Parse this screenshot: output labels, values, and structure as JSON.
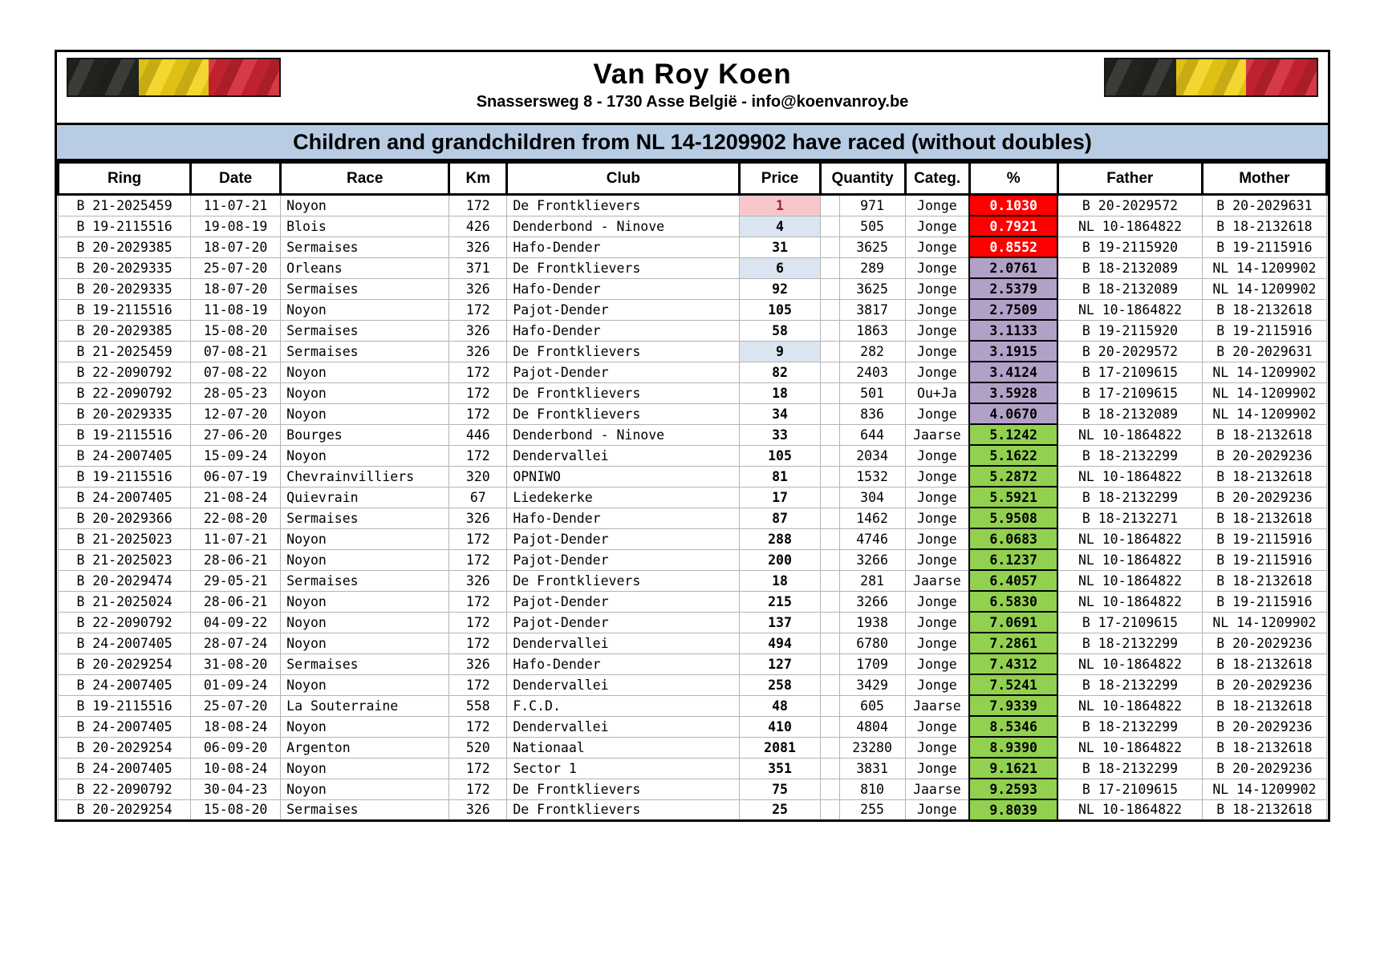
{
  "header": {
    "title": "Van Roy Koen",
    "address": "Snassersweg 8 - 1730 Asse België - info@koenvanroy.be"
  },
  "banner": {
    "text": "Children and grandchildren from NL 14-1209902 have raced (without doubles)"
  },
  "colors": {
    "banner_bg": "#b8cce4",
    "pct_red_bg": "#ff0000",
    "pct_red_text": "#ffffff",
    "pct_purple_bg": "#b2a1c7",
    "pct_purple_text": "#000000",
    "pct_green_bg": "#92d050",
    "pct_green_text": "#000000",
    "price_pink_bg": "#f7c7cd",
    "price_pink_text": "#a32430",
    "price_blue_bg": "#dbe5f1",
    "price_blue_text": "#000000",
    "flag_black": "#23271e",
    "flag_yellow": "#f2d118",
    "flag_red": "#d02433"
  },
  "table": {
    "columns": [
      "Ring",
      "Date",
      "Race",
      "Km",
      "Club",
      "Price",
      "Quantity",
      "Categ.",
      "%",
      "Father",
      "Mother"
    ],
    "rows": [
      {
        "ring": "B 21-2025459",
        "date": "11-07-21",
        "race": "Noyon",
        "km": "172",
        "club": "De Frontklievers",
        "price": "1",
        "price_bg": "pink",
        "quantity": "971",
        "categ": "Jonge",
        "pct": "0.1030",
        "pct_bg": "red",
        "father": "B 20-2029572",
        "mother": "B 20-2029631"
      },
      {
        "ring": "B 19-2115516",
        "date": "19-08-19",
        "race": "Blois",
        "km": "426",
        "club": "Denderbond - Ninove",
        "price": "4",
        "price_bg": "blue",
        "quantity": "505",
        "categ": "Jonge",
        "pct": "0.7921",
        "pct_bg": "red",
        "father": "NL 10-1864822",
        "mother": "B 18-2132618"
      },
      {
        "ring": "B 20-2029385",
        "date": "18-07-20",
        "race": "Sermaises",
        "km": "326",
        "club": "Hafo-Dender",
        "price": "31",
        "price_bg": "none",
        "quantity": "3625",
        "categ": "Jonge",
        "pct": "0.8552",
        "pct_bg": "red",
        "father": "B 19-2115920",
        "mother": "B 19-2115916"
      },
      {
        "ring": "B 20-2029335",
        "date": "25-07-20",
        "race": "Orleans",
        "km": "371",
        "club": "De Frontklievers",
        "price": "6",
        "price_bg": "blue",
        "quantity": "289",
        "categ": "Jonge",
        "pct": "2.0761",
        "pct_bg": "purple",
        "father": "B 18-2132089",
        "mother": "NL 14-1209902"
      },
      {
        "ring": "B 20-2029335",
        "date": "18-07-20",
        "race": "Sermaises",
        "km": "326",
        "club": "Hafo-Dender",
        "price": "92",
        "price_bg": "none",
        "quantity": "3625",
        "categ": "Jonge",
        "pct": "2.5379",
        "pct_bg": "purple",
        "father": "B 18-2132089",
        "mother": "NL 14-1209902"
      },
      {
        "ring": "B 19-2115516",
        "date": "11-08-19",
        "race": "Noyon",
        "km": "172",
        "club": "Pajot-Dender",
        "price": "105",
        "price_bg": "none",
        "quantity": "3817",
        "categ": "Jonge",
        "pct": "2.7509",
        "pct_bg": "purple",
        "father": "NL 10-1864822",
        "mother": "B 18-2132618"
      },
      {
        "ring": "B 20-2029385",
        "date": "15-08-20",
        "race": "Sermaises",
        "km": "326",
        "club": "Hafo-Dender",
        "price": "58",
        "price_bg": "none",
        "quantity": "1863",
        "categ": "Jonge",
        "pct": "3.1133",
        "pct_bg": "purple",
        "father": "B 19-2115920",
        "mother": "B 19-2115916"
      },
      {
        "ring": "B 21-2025459",
        "date": "07-08-21",
        "race": "Sermaises",
        "km": "326",
        "club": "De Frontklievers",
        "price": "9",
        "price_bg": "blue",
        "quantity": "282",
        "categ": "Jonge",
        "pct": "3.1915",
        "pct_bg": "purple",
        "father": "B 20-2029572",
        "mother": "B 20-2029631"
      },
      {
        "ring": "B 22-2090792",
        "date": "07-08-22",
        "race": "Noyon",
        "km": "172",
        "club": "Pajot-Dender",
        "price": "82",
        "price_bg": "none",
        "quantity": "2403",
        "categ": "Jonge",
        "pct": "3.4124",
        "pct_bg": "purple",
        "father": "B 17-2109615",
        "mother": "NL 14-1209902"
      },
      {
        "ring": "B 22-2090792",
        "date": "28-05-23",
        "race": "Noyon",
        "km": "172",
        "club": "De Frontklievers",
        "price": "18",
        "price_bg": "none",
        "quantity": "501",
        "categ": "Ou+Ja",
        "pct": "3.5928",
        "pct_bg": "purple",
        "father": "B 17-2109615",
        "mother": "NL 14-1209902"
      },
      {
        "ring": "B 20-2029335",
        "date": "12-07-20",
        "race": "Noyon",
        "km": "172",
        "club": "De Frontklievers",
        "price": "34",
        "price_bg": "none",
        "quantity": "836",
        "categ": "Jonge",
        "pct": "4.0670",
        "pct_bg": "purple",
        "father": "B 18-2132089",
        "mother": "NL 14-1209902"
      },
      {
        "ring": "B 19-2115516",
        "date": "27-06-20",
        "race": "Bourges",
        "km": "446",
        "club": "Denderbond - Ninove",
        "price": "33",
        "price_bg": "none",
        "quantity": "644",
        "categ": "Jaarse",
        "pct": "5.1242",
        "pct_bg": "green",
        "father": "NL 10-1864822",
        "mother": "B 18-2132618"
      },
      {
        "ring": "B 24-2007405",
        "date": "15-09-24",
        "race": "Noyon",
        "km": "172",
        "club": "Dendervallei",
        "price": "105",
        "price_bg": "none",
        "quantity": "2034",
        "categ": "Jonge",
        "pct": "5.1622",
        "pct_bg": "green",
        "father": "B 18-2132299",
        "mother": "B 20-2029236"
      },
      {
        "ring": "B 19-2115516",
        "date": "06-07-19",
        "race": "Chevrainvilliers",
        "km": "320",
        "club": "OPNIWO",
        "price": "81",
        "price_bg": "none",
        "quantity": "1532",
        "categ": "Jonge",
        "pct": "5.2872",
        "pct_bg": "green",
        "father": "NL 10-1864822",
        "mother": "B 18-2132618"
      },
      {
        "ring": "B 24-2007405",
        "date": "21-08-24",
        "race": "Quievrain",
        "km": "67",
        "club": "Liedekerke",
        "price": "17",
        "price_bg": "none",
        "quantity": "304",
        "categ": "Jonge",
        "pct": "5.5921",
        "pct_bg": "green",
        "father": "B 18-2132299",
        "mother": "B 20-2029236"
      },
      {
        "ring": "B 20-2029366",
        "date": "22-08-20",
        "race": "Sermaises",
        "km": "326",
        "club": "Hafo-Dender",
        "price": "87",
        "price_bg": "none",
        "quantity": "1462",
        "categ": "Jonge",
        "pct": "5.9508",
        "pct_bg": "green",
        "father": "B 18-2132271",
        "mother": "B 18-2132618"
      },
      {
        "ring": "B 21-2025023",
        "date": "11-07-21",
        "race": "Noyon",
        "km": "172",
        "club": "Pajot-Dender",
        "price": "288",
        "price_bg": "none",
        "quantity": "4746",
        "categ": "Jonge",
        "pct": "6.0683",
        "pct_bg": "green",
        "father": "NL 10-1864822",
        "mother": "B 19-2115916"
      },
      {
        "ring": "B 21-2025023",
        "date": "28-06-21",
        "race": "Noyon",
        "km": "172",
        "club": "Pajot-Dender",
        "price": "200",
        "price_bg": "none",
        "quantity": "3266",
        "categ": "Jonge",
        "pct": "6.1237",
        "pct_bg": "green",
        "father": "NL 10-1864822",
        "mother": "B 19-2115916"
      },
      {
        "ring": "B 20-2029474",
        "date": "29-05-21",
        "race": "Sermaises",
        "km": "326",
        "club": "De Frontklievers",
        "price": "18",
        "price_bg": "none",
        "quantity": "281",
        "categ": "Jaarse",
        "pct": "6.4057",
        "pct_bg": "green",
        "father": "NL 10-1864822",
        "mother": "B 18-2132618"
      },
      {
        "ring": "B 21-2025024",
        "date": "28-06-21",
        "race": "Noyon",
        "km": "172",
        "club": "Pajot-Dender",
        "price": "215",
        "price_bg": "none",
        "quantity": "3266",
        "categ": "Jonge",
        "pct": "6.5830",
        "pct_bg": "green",
        "father": "NL 10-1864822",
        "mother": "B 19-2115916"
      },
      {
        "ring": "B 22-2090792",
        "date": "04-09-22",
        "race": "Noyon",
        "km": "172",
        "club": "Pajot-Dender",
        "price": "137",
        "price_bg": "none",
        "quantity": "1938",
        "categ": "Jonge",
        "pct": "7.0691",
        "pct_bg": "green",
        "father": "B 17-2109615",
        "mother": "NL 14-1209902"
      },
      {
        "ring": "B 24-2007405",
        "date": "28-07-24",
        "race": "Noyon",
        "km": "172",
        "club": "Dendervallei",
        "price": "494",
        "price_bg": "none",
        "quantity": "6780",
        "categ": "Jonge",
        "pct": "7.2861",
        "pct_bg": "green",
        "father": "B 18-2132299",
        "mother": "B 20-2029236"
      },
      {
        "ring": "B 20-2029254",
        "date": "31-08-20",
        "race": "Sermaises",
        "km": "326",
        "club": "Hafo-Dender",
        "price": "127",
        "price_bg": "none",
        "quantity": "1709",
        "categ": "Jonge",
        "pct": "7.4312",
        "pct_bg": "green",
        "father": "NL 10-1864822",
        "mother": "B 18-2132618"
      },
      {
        "ring": "B 24-2007405",
        "date": "01-09-24",
        "race": "Noyon",
        "km": "172",
        "club": "Dendervallei",
        "price": "258",
        "price_bg": "none",
        "quantity": "3429",
        "categ": "Jonge",
        "pct": "7.5241",
        "pct_bg": "green",
        "father": "B 18-2132299",
        "mother": "B 20-2029236"
      },
      {
        "ring": "B 19-2115516",
        "date": "25-07-20",
        "race": "La Souterraine",
        "km": "558",
        "club": "F.C.D.",
        "price": "48",
        "price_bg": "none",
        "quantity": "605",
        "categ": "Jaarse",
        "pct": "7.9339",
        "pct_bg": "green",
        "father": "NL 10-1864822",
        "mother": "B 18-2132618"
      },
      {
        "ring": "B 24-2007405",
        "date": "18-08-24",
        "race": "Noyon",
        "km": "172",
        "club": "Dendervallei",
        "price": "410",
        "price_bg": "none",
        "quantity": "4804",
        "categ": "Jonge",
        "pct": "8.5346",
        "pct_bg": "green",
        "father": "B 18-2132299",
        "mother": "B 20-2029236"
      },
      {
        "ring": "B 20-2029254",
        "date": "06-09-20",
        "race": "Argenton",
        "km": "520",
        "club": "Nationaal",
        "price": "2081",
        "price_bg": "none",
        "quantity": "23280",
        "categ": "Jonge",
        "pct": "8.9390",
        "pct_bg": "green",
        "father": "NL 10-1864822",
        "mother": "B 18-2132618"
      },
      {
        "ring": "B 24-2007405",
        "date": "10-08-24",
        "race": "Noyon",
        "km": "172",
        "club": "Sector 1",
        "price": "351",
        "price_bg": "none",
        "quantity": "3831",
        "categ": "Jonge",
        "pct": "9.1621",
        "pct_bg": "green",
        "father": "B 18-2132299",
        "mother": "B 20-2029236"
      },
      {
        "ring": "B 22-2090792",
        "date": "30-04-23",
        "race": "Noyon",
        "km": "172",
        "club": "De Frontklievers",
        "price": "75",
        "price_bg": "none",
        "quantity": "810",
        "categ": "Jaarse",
        "pct": "9.2593",
        "pct_bg": "green",
        "father": "B 17-2109615",
        "mother": "NL 14-1209902"
      },
      {
        "ring": "B 20-2029254",
        "date": "15-08-20",
        "race": "Sermaises",
        "km": "326",
        "club": "De Frontklievers",
        "price": "25",
        "price_bg": "none",
        "quantity": "255",
        "categ": "Jonge",
        "pct": "9.8039",
        "pct_bg": "green",
        "father": "NL 10-1864822",
        "mother": "B 18-2132618"
      }
    ]
  }
}
